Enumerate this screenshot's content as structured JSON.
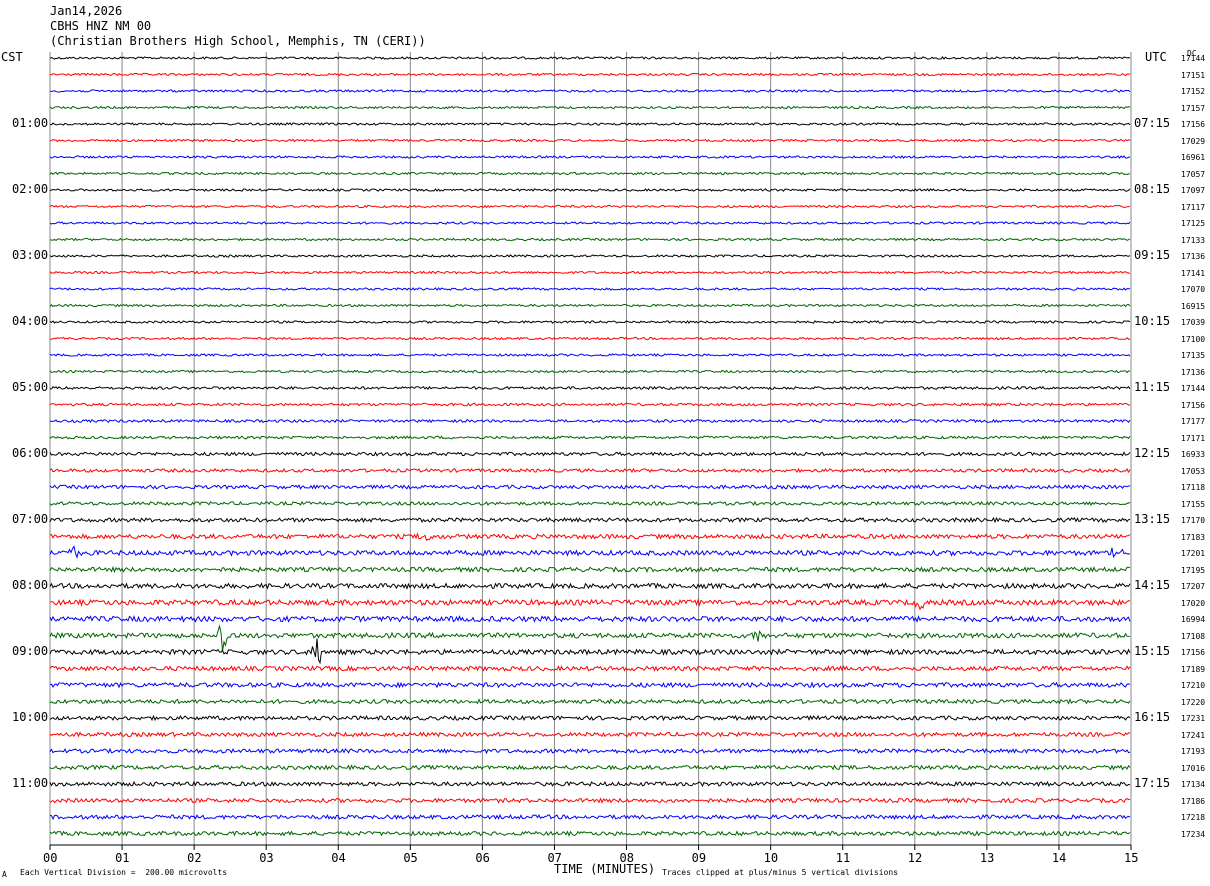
{
  "header": {
    "date": "Jan14,2026",
    "station": "CBHS HNZ NM 00",
    "site": "(Christian Brothers High School, Memphis, TN (CERI))"
  },
  "left_timezone": "CST",
  "right_timezone": "UTC",
  "dc_label": "DC",
  "footer": {
    "scale": "Each Vertical Division =  200.00 microvolts",
    "clip": "Traces clipped at plus/minus 5 vertical divisions",
    "icon_text": "A"
  },
  "chart_data": {
    "type": "line",
    "title": "",
    "xlabel": "TIME (MINUTES)",
    "x_ticks": [
      "00",
      "01",
      "02",
      "03",
      "04",
      "05",
      "06",
      "07",
      "08",
      "09",
      "10",
      "11",
      "12",
      "13",
      "14",
      "15"
    ],
    "xlim": [
      0,
      15
    ],
    "trace_colors": [
      "#000000",
      "#ff0000",
      "#0000ff",
      "#006400"
    ],
    "left_hour_labels": [
      "01:00",
      "02:00",
      "03:00",
      "04:00",
      "05:00",
      "06:00",
      "07:00",
      "08:00",
      "09:00",
      "10:00",
      "11:00"
    ],
    "right_hour_labels": [
      "07:15",
      "08:15",
      "09:15",
      "10:15",
      "11:15",
      "12:15",
      "13:15",
      "14:15",
      "15:15",
      "16:15",
      "17:15"
    ],
    "dc_offsets": [
      17144,
      17151,
      17152,
      17157,
      17156,
      17029,
      16961,
      17057,
      17097,
      17117,
      17125,
      17133,
      17136,
      17141,
      17070,
      16915,
      17039,
      17100,
      17135,
      17136,
      17144,
      17156,
      17177,
      17171,
      16933,
      17053,
      17118,
      17155,
      17170,
      17183,
      17201,
      17195,
      17207,
      17020,
      16994,
      17108,
      17156,
      17189,
      17210,
      17220,
      17231,
      17241,
      17193,
      17016,
      17134,
      17186,
      17218,
      17234
    ],
    "trace_noise_level": [
      1,
      1,
      1,
      1,
      1,
      1,
      1,
      1,
      1,
      1,
      1,
      1,
      1,
      1,
      1,
      1,
      1,
      1,
      1,
      1,
      1.2,
      1.2,
      1.2,
      1.2,
      1.5,
      1.5,
      1.6,
      1.5,
      1.8,
      2,
      2.2,
      2,
      2.2,
      2.4,
      2.4,
      2.2,
      2.2,
      2,
      2,
      1.8,
      1.8,
      1.8,
      1.8,
      1.8,
      1.8,
      1.8,
      1.8,
      1.8
    ],
    "events": [
      {
        "trace": 35,
        "minute": 2.4,
        "amplitude": 5
      },
      {
        "trace": 36,
        "minute": 3.7,
        "amplitude": 5
      },
      {
        "trace": 35,
        "minute": 9.8,
        "amplitude": 4
      },
      {
        "trace": 30,
        "minute": 0.3,
        "amplitude": 2
      },
      {
        "trace": 30,
        "minute": 14.8,
        "amplitude": 2
      },
      {
        "trace": 33,
        "minute": 12.1,
        "amplitude": 2
      },
      {
        "trace": 29,
        "minute": 5.2,
        "amplitude": 2
      }
    ]
  }
}
